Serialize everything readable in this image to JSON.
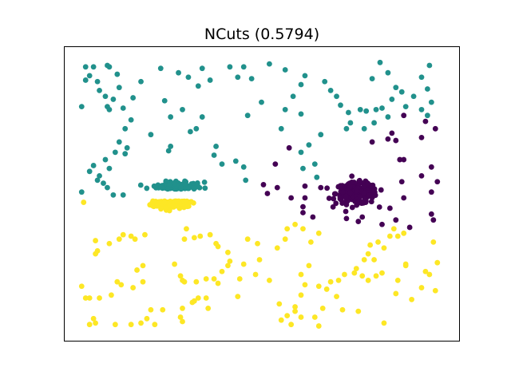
{
  "chart_data": {
    "type": "scatter",
    "title": "NCuts (0.5794)",
    "xlabel": "",
    "ylabel": "",
    "xlim": [
      0,
      10
    ],
    "ylim": [
      0,
      10
    ],
    "grid": false,
    "legend": "none",
    "axis_ticks": false,
    "colors": {
      "teal": "#21918c",
      "purple": "#440154",
      "yellow": "#fde725"
    },
    "clusters": [
      {
        "color": "#21918c",
        "blob_centers": [
          [
            2.85,
            5.15
          ]
        ],
        "scattered_points": [
          [
            0.55,
            9.3
          ],
          [
            0.75,
            9.3
          ],
          [
            1.1,
            9.35
          ],
          [
            1.15,
            9.3
          ],
          [
            0.65,
            9.0
          ],
          [
            0.55,
            8.85
          ],
          [
            0.85,
            8.8
          ],
          [
            1.4,
            8.6
          ],
          [
            1.35,
            9.05
          ],
          [
            0.9,
            8.5
          ],
          [
            1.25,
            8.2
          ],
          [
            1.05,
            8.3
          ],
          [
            1.75,
            8.25
          ],
          [
            1.95,
            8.8
          ],
          [
            0.45,
            7.95
          ],
          [
            1.1,
            7.95
          ],
          [
            1.5,
            7.9
          ],
          [
            1.15,
            7.85
          ],
          [
            2.45,
            9.25
          ],
          [
            2.9,
            9.1
          ],
          [
            3.15,
            8.95
          ],
          [
            3.5,
            9.25
          ],
          [
            3.7,
            8.85
          ],
          [
            3.4,
            8.65
          ],
          [
            4.2,
            9.3
          ],
          [
            4.4,
            8.95
          ],
          [
            4.55,
            9.3
          ],
          [
            4.75,
            8.9
          ],
          [
            5.2,
            9.4
          ],
          [
            5.6,
            9.2
          ],
          [
            6.1,
            9.0
          ],
          [
            6.0,
            8.7
          ],
          [
            5.8,
            8.3
          ],
          [
            5.0,
            8.1
          ],
          [
            4.65,
            7.65
          ],
          [
            3.2,
            7.1
          ],
          [
            3.5,
            7.6
          ],
          [
            3.35,
            7.2
          ],
          [
            3.0,
            7.85
          ],
          [
            2.55,
            8.15
          ],
          [
            2.7,
            7.6
          ],
          [
            1.7,
            7.5
          ],
          [
            1.55,
            7.2
          ],
          [
            1.4,
            6.75
          ],
          [
            1.6,
            6.55
          ],
          [
            1.3,
            6.4
          ],
          [
            1.55,
            6.35
          ],
          [
            2.2,
            7.0
          ],
          [
            2.7,
            6.6
          ],
          [
            2.65,
            6.45
          ],
          [
            1.05,
            6.15
          ],
          [
            1.15,
            5.85
          ],
          [
            0.75,
            5.95
          ],
          [
            0.65,
            5.75
          ],
          [
            0.9,
            5.6
          ],
          [
            1.0,
            5.35
          ],
          [
            1.1,
            5.2
          ],
          [
            0.85,
            5.45
          ],
          [
            0.45,
            5.05
          ],
          [
            1.25,
            4.95
          ],
          [
            1.5,
            4.95
          ],
          [
            3.85,
            6.6
          ],
          [
            3.8,
            6.3
          ],
          [
            4.0,
            6.0
          ],
          [
            4.35,
            6.1
          ],
          [
            4.55,
            5.9
          ],
          [
            4.6,
            5.45
          ],
          [
            5.5,
            7.2
          ],
          [
            5.6,
            7.85
          ],
          [
            6.0,
            7.7
          ],
          [
            6.6,
            8.8
          ],
          [
            6.75,
            8.5
          ],
          [
            6.9,
            8.3
          ],
          [
            7.0,
            8.0
          ],
          [
            7.2,
            7.75
          ],
          [
            6.5,
            7.0
          ],
          [
            6.2,
            6.65
          ],
          [
            6.0,
            6.4
          ],
          [
            6.05,
            5.85
          ],
          [
            6.35,
            6.0
          ],
          [
            6.4,
            5.55
          ],
          [
            8.0,
            9.45
          ],
          [
            8.2,
            9.1
          ],
          [
            7.8,
            8.9
          ],
          [
            8.4,
            8.6
          ],
          [
            8.3,
            8.2
          ],
          [
            8.05,
            7.9
          ],
          [
            7.5,
            7.85
          ],
          [
            7.25,
            7.4
          ],
          [
            7.15,
            7.2
          ],
          [
            7.6,
            7.2
          ],
          [
            7.85,
            7.4
          ],
          [
            7.65,
            7.8
          ],
          [
            7.9,
            7.85
          ],
          [
            8.2,
            7.6
          ],
          [
            9.25,
            9.35
          ],
          [
            9.05,
            8.95
          ],
          [
            9.2,
            8.55
          ],
          [
            8.85,
            8.3
          ],
          [
            8.55,
            8.45
          ],
          [
            8.65,
            7.95
          ],
          [
            9.05,
            7.85
          ],
          [
            9.3,
            8.1
          ],
          [
            9.2,
            7.65
          ]
        ]
      },
      {
        "color": "#440154",
        "blob_centers": [
          [
            7.4,
            5.0
          ]
        ],
        "scattered_points": [
          [
            9.4,
            7.2
          ],
          [
            9.15,
            7.45
          ],
          [
            9.05,
            6.9
          ],
          [
            8.6,
            7.65
          ],
          [
            8.3,
            7.05
          ],
          [
            8.4,
            6.8
          ],
          [
            8.2,
            6.85
          ],
          [
            7.8,
            6.75
          ],
          [
            8.5,
            6.15
          ],
          [
            8.6,
            6.15
          ],
          [
            9.3,
            5.9
          ],
          [
            9.05,
            5.6
          ],
          [
            9.45,
            5.4
          ],
          [
            9.3,
            5.05
          ],
          [
            8.55,
            5.4
          ],
          [
            8.6,
            4.85
          ],
          [
            8.25,
            4.5
          ],
          [
            8.4,
            4.1
          ],
          [
            9.3,
            4.3
          ],
          [
            9.35,
            4.1
          ],
          [
            8.75,
            3.85
          ],
          [
            8.05,
            3.95
          ],
          [
            7.55,
            4.2
          ],
          [
            7.45,
            4.05
          ],
          [
            7.15,
            4.15
          ],
          [
            5.7,
            6.55
          ],
          [
            5.35,
            6.0
          ],
          [
            5.15,
            5.0
          ],
          [
            5.4,
            5.2
          ],
          [
            5.75,
            4.85
          ],
          [
            6.1,
            5.25
          ],
          [
            6.5,
            5.2
          ],
          [
            6.1,
            4.85
          ],
          [
            6.05,
            4.55
          ],
          [
            6.05,
            4.35
          ],
          [
            6.3,
            4.2
          ],
          [
            5.05,
            5.3
          ]
        ]
      },
      {
        "color": "#fde725",
        "blob_centers": [
          [
            2.75,
            4.75
          ]
        ],
        "scattered_points": [
          [
            0.5,
            4.7
          ],
          [
            0.8,
            3.4
          ],
          [
            0.85,
            3.05
          ],
          [
            1.15,
            3.3
          ],
          [
            1.4,
            3.45
          ],
          [
            1.5,
            3.6
          ],
          [
            1.7,
            3.55
          ],
          [
            1.8,
            3.45
          ],
          [
            2.05,
            3.6
          ],
          [
            0.8,
            2.95
          ],
          [
            1.85,
            2.4
          ],
          [
            2.0,
            2.55
          ],
          [
            2.0,
            2.0
          ],
          [
            1.75,
            1.8
          ],
          [
            1.45,
            1.9
          ],
          [
            1.35,
            2.0
          ],
          [
            1.2,
            1.55
          ],
          [
            0.9,
            1.45
          ],
          [
            0.45,
            1.85
          ],
          [
            0.55,
            1.45
          ],
          [
            0.65,
            1.45
          ],
          [
            0.75,
            0.75
          ],
          [
            0.8,
            0.6
          ],
          [
            0.65,
            0.55
          ],
          [
            1.3,
            0.55
          ],
          [
            1.7,
            0.55
          ],
          [
            1.95,
            0.6
          ],
          [
            2.1,
            0.75
          ],
          [
            2.2,
            1.05
          ],
          [
            2.5,
            1.05
          ],
          [
            2.3,
            0.55
          ],
          [
            3.0,
            0.65
          ],
          [
            2.95,
            0.8
          ],
          [
            3.0,
            1.1
          ],
          [
            3.25,
            1.3
          ],
          [
            3.3,
            1.35
          ],
          [
            3.4,
            1.45
          ],
          [
            3.6,
            1.45
          ],
          [
            3.65,
            1.1
          ],
          [
            3.35,
            2.0
          ],
          [
            3.05,
            2.0
          ],
          [
            3.0,
            2.05
          ],
          [
            2.95,
            2.2
          ],
          [
            2.8,
            2.6
          ],
          [
            3.05,
            3.45
          ],
          [
            3.1,
            3.8
          ],
          [
            3.3,
            3.5
          ],
          [
            3.45,
            3.55
          ],
          [
            3.7,
            3.6
          ],
          [
            3.85,
            3.3
          ],
          [
            3.9,
            3.2
          ],
          [
            4.15,
            3.0
          ],
          [
            4.2,
            2.7
          ],
          [
            4.15,
            2.55
          ],
          [
            4.0,
            2.35
          ],
          [
            3.8,
            2.1
          ],
          [
            3.6,
            2.1
          ],
          [
            3.9,
            1.95
          ],
          [
            4.45,
            2.1
          ],
          [
            4.4,
            1.5
          ],
          [
            4.55,
            2.6
          ],
          [
            4.65,
            3.45
          ],
          [
            4.9,
            3.3
          ],
          [
            4.95,
            2.75
          ],
          [
            4.85,
            2.25
          ],
          [
            5.2,
            2.05
          ],
          [
            5.4,
            3.15
          ],
          [
            5.6,
            3.45
          ],
          [
            5.65,
            3.8
          ],
          [
            5.85,
            3.95
          ],
          [
            6.05,
            3.8
          ],
          [
            6.45,
            3.65
          ],
          [
            6.25,
            3.35
          ],
          [
            6.2,
            2.55
          ],
          [
            6.0,
            2.25
          ],
          [
            6.1,
            1.9
          ],
          [
            6.0,
            1.55
          ],
          [
            5.85,
            1.15
          ],
          [
            5.45,
            1.25
          ],
          [
            5.85,
            1.0
          ],
          [
            5.65,
            0.85
          ],
          [
            5.75,
            0.55
          ],
          [
            5.5,
            0.7
          ],
          [
            6.0,
            0.8
          ],
          [
            6.35,
            0.8
          ],
          [
            6.45,
            0.5
          ],
          [
            6.55,
            1.1
          ],
          [
            6.9,
            1.5
          ],
          [
            6.65,
            1.75
          ],
          [
            6.45,
            1.85
          ],
          [
            6.75,
            2.0
          ],
          [
            6.95,
            2.05
          ],
          [
            7.1,
            2.25
          ],
          [
            7.35,
            2.3
          ],
          [
            7.4,
            2.45
          ],
          [
            7.55,
            2.2
          ],
          [
            7.7,
            2.05
          ],
          [
            7.9,
            2.2
          ],
          [
            8.05,
            2.3
          ],
          [
            7.85,
            2.75
          ],
          [
            7.7,
            2.95
          ],
          [
            7.75,
            3.25
          ],
          [
            7.95,
            3.35
          ],
          [
            8.1,
            3.15
          ],
          [
            8.25,
            3.55
          ],
          [
            8.45,
            3.55
          ],
          [
            8.6,
            3.65
          ],
          [
            8.35,
            3.8
          ],
          [
            8.65,
            2.6
          ],
          [
            8.65,
            2.55
          ],
          [
            8.45,
            2.05
          ],
          [
            8.4,
            1.6
          ],
          [
            8.8,
            1.4
          ],
          [
            9.05,
            1.8
          ],
          [
            9.25,
            2.25
          ],
          [
            9.45,
            2.65
          ],
          [
            9.35,
            3.35
          ],
          [
            9.4,
            1.7
          ],
          [
            7.6,
            2.75
          ],
          [
            7.45,
            1.0
          ],
          [
            8.1,
            0.6
          ],
          [
            7.05,
            1.05
          ],
          [
            9.15,
            2.35
          ]
        ]
      }
    ]
  }
}
